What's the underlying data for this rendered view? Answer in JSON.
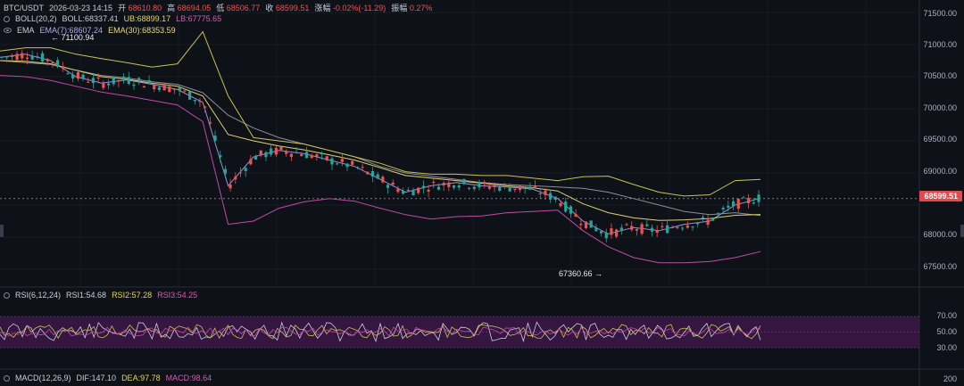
{
  "symbol": "BTC/USDT",
  "datetime": "2026-03-23 14:15",
  "ohlc": {
    "open_label": "开",
    "open": "68610.80",
    "high_label": "高",
    "high": "68694.05",
    "low_label": "低",
    "low": "68506.77",
    "close_label": "收",
    "close": "68599.51",
    "change_label": "涨幅",
    "change": "-0.02%(-11.29)",
    "amp_label": "振幅",
    "amp": "0.27%"
  },
  "boll": {
    "label": "BOLL(20,2)",
    "mid": "BOLL:68337.41",
    "ub": "UB:68899.17",
    "lb": "LB:67775.65"
  },
  "ema": {
    "label": "EMA",
    "ema7": "EMA(7):68607.24",
    "ema30": "EMA(30):68353.59"
  },
  "price_axis": [
    "71500.00",
    "71000.00",
    "70500.00",
    "70000.00",
    "69500.00",
    "69000.00",
    "68599.51",
    "68000.00",
    "67500.00"
  ],
  "current_price": "68599.51",
  "annotations": {
    "high_mark": "← 71100.94",
    "low_mark": "67360.66 →"
  },
  "rsi": {
    "label": "RSI(6,12,24)",
    "rsi1": "RSI1:54.68",
    "rsi2": "RSI2:57.28",
    "rsi3": "RSI3:54.25",
    "axis": [
      "70.00",
      "50.00",
      "30.00"
    ]
  },
  "macd": {
    "label": "MACD(12,26,9)",
    "dif": "DIF:147.10",
    "dea": "DEA:97.78",
    "macd": "MACD:98.64",
    "axis_top": "200"
  },
  "colors": {
    "up": "#26a69a",
    "down": "#ef5350",
    "boll_band": "#c9c34a",
    "boll_lb": "#c04aa8",
    "ema7": "#9b8fd8",
    "ema30": "#e0d26a",
    "rsi_zone": "#3a1746"
  },
  "chart_data": {
    "type": "candlestick",
    "price_range": [
      67300,
      71700
    ],
    "series": [
      {
        "name": "BOLL",
        "values": [
          70750,
          70720,
          70690,
          70600,
          70520,
          70480,
          70420,
          70380,
          70250,
          69900,
          69700,
          69550,
          69450,
          69350,
          69250,
          69100,
          69000,
          68950,
          68900,
          68850,
          68820,
          68800,
          68780,
          68760,
          68700,
          68600,
          68500,
          68400,
          68350,
          68380,
          68337
        ]
      },
      {
        "name": "UB",
        "values": [
          70900,
          70950,
          70950,
          70850,
          70780,
          70720,
          70650,
          70700,
          71200,
          70200,
          69550,
          69500,
          69450,
          69350,
          69250,
          69150,
          69020,
          68980,
          68980,
          68960,
          68960,
          68920,
          68880,
          68940,
          68950,
          68820,
          68700,
          68640,
          68660,
          68880,
          68899
        ]
      },
      {
        "name": "LB",
        "values": [
          70520,
          70500,
          70440,
          70350,
          70260,
          70200,
          70130,
          70060,
          69800,
          68200,
          68250,
          68450,
          68550,
          68600,
          68560,
          68450,
          68350,
          68280,
          68320,
          68330,
          68380,
          68400,
          68420,
          68100,
          67850,
          67680,
          67600,
          67600,
          67620,
          67680,
          67775
        ]
      },
      {
        "name": "EMA(7)",
        "values": [
          70800,
          70850,
          70750,
          70500,
          70400,
          70450,
          70380,
          70300,
          70100,
          68800,
          69250,
          69350,
          69300,
          69200,
          69100,
          68900,
          68700,
          68800,
          68850,
          68800,
          68780,
          68750,
          68600,
          68250,
          68050,
          68150,
          68100,
          68200,
          68250,
          68500,
          68607
        ]
      },
      {
        "name": "EMA(30)",
        "values": [
          70750,
          70740,
          70700,
          70600,
          70500,
          70460,
          70400,
          70350,
          70200,
          69600,
          69500,
          69420,
          69360,
          69280,
          69200,
          69080,
          68960,
          68920,
          68880,
          68840,
          68800,
          68770,
          68720,
          68520,
          68380,
          68300,
          68260,
          68270,
          68290,
          68340,
          68353
        ]
      }
    ]
  }
}
